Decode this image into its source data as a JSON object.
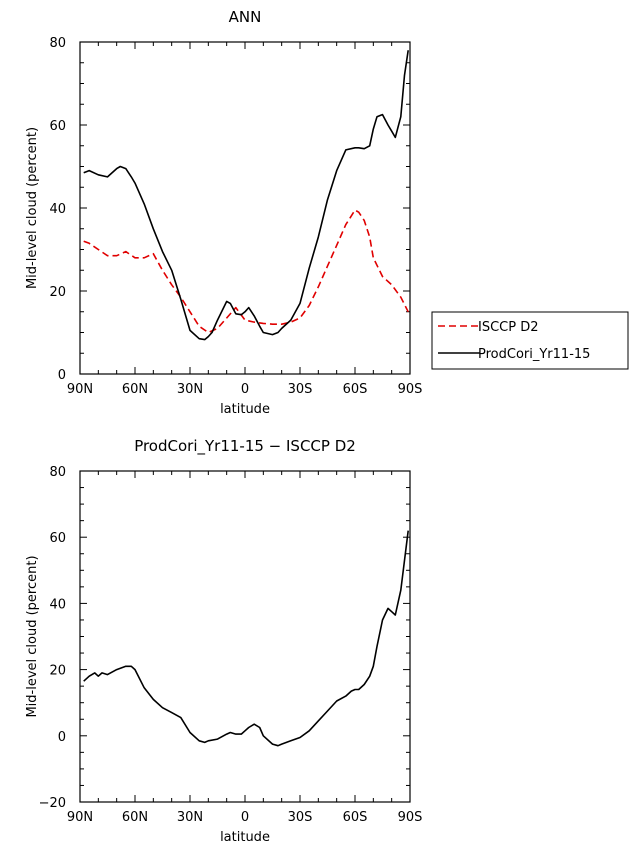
{
  "chart_data": [
    {
      "type": "line",
      "title": "ANN",
      "xlabel": "latitude",
      "ylabel": "Mid-level cloud (percent)",
      "x_ticks": [
        "90N",
        "60N",
        "30N",
        "0",
        "30S",
        "60S",
        "90S"
      ],
      "y_ticks": [
        "0",
        "20",
        "40",
        "60",
        "80"
      ],
      "xlim": [
        90,
        -90
      ],
      "ylim": [
        0,
        80
      ],
      "legend": {
        "placement": "outside-right",
        "entries": [
          "ISCCP D2",
          "ProdCori_Yr11-15"
        ]
      },
      "series": [
        {
          "name": "ISCCP D2",
          "color": "#e00000",
          "dash": "dashed",
          "x": [
            88,
            85,
            80,
            75,
            70,
            65,
            60,
            55,
            50,
            45,
            40,
            35,
            30,
            25,
            20,
            15,
            10,
            5,
            0,
            -5,
            -10,
            -15,
            -20,
            -25,
            -30,
            -35,
            -40,
            -45,
            -50,
            -55,
            -60,
            -62,
            -65,
            -68,
            -70,
            -75,
            -80,
            -85,
            -89
          ],
          "y": [
            32,
            31.5,
            30,
            28.5,
            28.5,
            29.5,
            28,
            28,
            29,
            25,
            21.5,
            18.5,
            15,
            11.5,
            10,
            11,
            13.5,
            16,
            13,
            12.5,
            12.2,
            12,
            12,
            12.5,
            13.5,
            16.5,
            21,
            26,
            31,
            36,
            39.5,
            39,
            37,
            33,
            28,
            23.5,
            21.5,
            18.5,
            15
          ]
        },
        {
          "name": "ProdCori_Yr11-15",
          "color": "#000000",
          "dash": "solid",
          "x": [
            88,
            85,
            80,
            75,
            70,
            68,
            65,
            62,
            60,
            55,
            50,
            45,
            40,
            35,
            30,
            25,
            22,
            20,
            18,
            15,
            10,
            8,
            5,
            2,
            0,
            -2,
            -5,
            -8,
            -10,
            -15,
            -18,
            -20,
            -25,
            -30,
            -35,
            -40,
            -45,
            -50,
            -55,
            -60,
            -62,
            -65,
            -68,
            -70,
            -72,
            -75,
            -78,
            -80,
            -82,
            -85,
            -87,
            -89
          ],
          "y": [
            48.5,
            49,
            48,
            47.5,
            49.5,
            50,
            49.5,
            47.5,
            46,
            41,
            35,
            29.5,
            25,
            18,
            10.5,
            8.5,
            8.3,
            9,
            10,
            13,
            17.5,
            17,
            14.5,
            14.3,
            15,
            16,
            14,
            11.5,
            10,
            9.5,
            10,
            11,
            13,
            17,
            25.5,
            33,
            42,
            49,
            54,
            54.5,
            54.5,
            54.3,
            55,
            59,
            62,
            62.5,
            60,
            58.5,
            57,
            62,
            72,
            78
          ]
        }
      ]
    },
    {
      "type": "line",
      "title": "ProdCori_Yr11-15 − ISCCP D2",
      "xlabel": "latitude",
      "ylabel": "Mid-level cloud (percent)",
      "x_ticks": [
        "90N",
        "60N",
        "30N",
        "0",
        "30S",
        "60S",
        "90S"
      ],
      "y_ticks": [
        "−20",
        "0",
        "20",
        "40",
        "60",
        "80"
      ],
      "xlim": [
        90,
        -90
      ],
      "ylim": [
        -20,
        80
      ],
      "series": [
        {
          "color": "#000000",
          "dash": "solid",
          "x": [
            88,
            85,
            82,
            80,
            78,
            75,
            70,
            65,
            62,
            60,
            55,
            50,
            45,
            40,
            35,
            30,
            25,
            22,
            20,
            15,
            10,
            8,
            5,
            2,
            0,
            -2,
            -5,
            -8,
            -10,
            -15,
            -18,
            -20,
            -25,
            -30,
            -35,
            -40,
            -45,
            -50,
            -55,
            -58,
            -60,
            -62,
            -65,
            -68,
            -70,
            -72,
            -75,
            -78,
            -80,
            -82,
            -85,
            -89
          ],
          "y": [
            16.5,
            18,
            19,
            18,
            19,
            18.5,
            20,
            21,
            21,
            20,
            14.5,
            11,
            8.5,
            7,
            5.5,
            1,
            -1.5,
            -2,
            -1.5,
            -1,
            0.5,
            1,
            0.5,
            0.5,
            1.5,
            2.5,
            3.5,
            2.5,
            0,
            -2.5,
            -3,
            -2.5,
            -1.5,
            -0.5,
            1.5,
            4.5,
            7.5,
            10.5,
            12,
            13.5,
            14,
            14,
            15.5,
            18,
            21,
            27,
            35,
            38.5,
            37.5,
            36.5,
            44,
            62
          ]
        }
      ]
    }
  ]
}
